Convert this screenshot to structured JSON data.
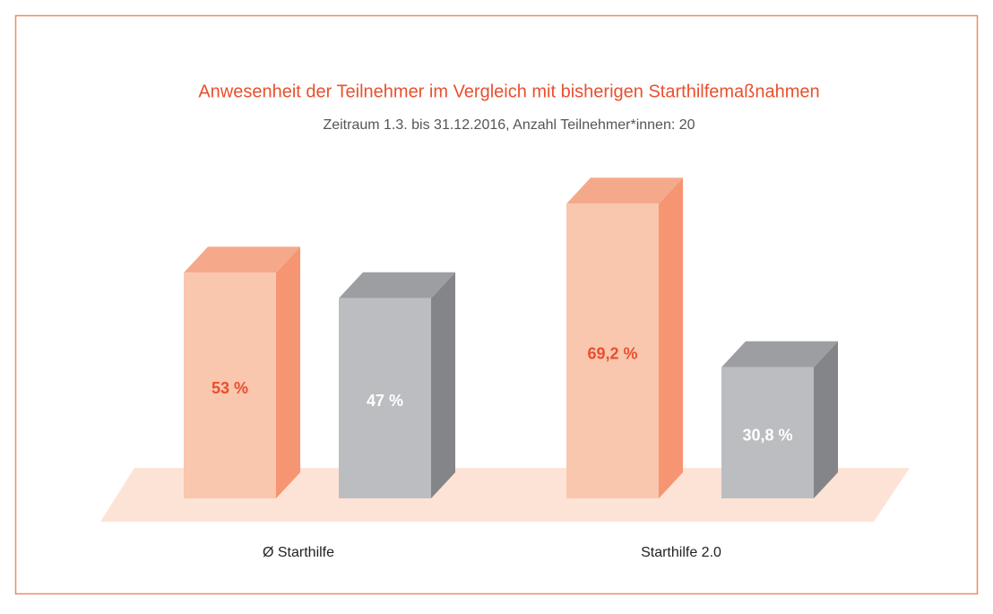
{
  "chart_data": {
    "type": "bar3d",
    "title": "Anwesenheit der Teilnehmer im Vergleich mit bisherigen Starthilfemaßnahmen",
    "subtitle": "Zeitraum 1.3. bis 31.12.2016, Anzahl Teilnehmer*innen: 20",
    "categories": [
      "Ø Starthilfe",
      "Starthilfe 2.0"
    ],
    "series": [
      {
        "color": "#f9c6ae",
        "side_color": "#f69571",
        "top_color": "#f5a98b",
        "label_color": "#e8502e",
        "values": [
          53,
          69.2
        ],
        "value_labels": [
          "53 %",
          "69,2 %"
        ]
      },
      {
        "color": "#bcbdc0",
        "side_color": "#848589",
        "top_color": "#9d9ea2",
        "label_color": "#ffffff",
        "values": [
          47,
          30.8
        ],
        "value_labels": [
          "47 %",
          "30,8 %"
        ]
      }
    ]
  }
}
